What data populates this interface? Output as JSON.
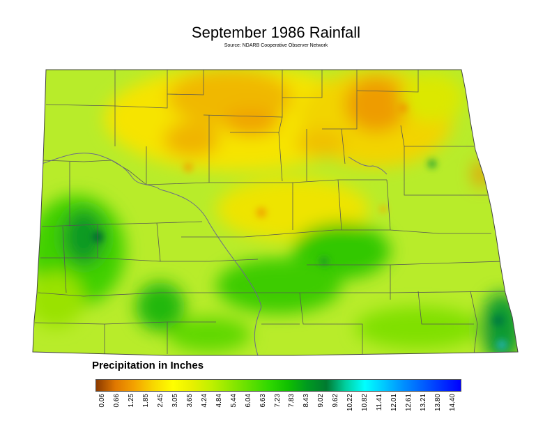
{
  "title": "September 1986 Rainfall",
  "source": "Source: NDARB Cooperative Observer Network",
  "legend": {
    "title": "Precipitation in Inches",
    "ticks": [
      "0.06",
      "0.66",
      "1.25",
      "1.85",
      "2.45",
      "3.05",
      "3.65",
      "4.24",
      "4.84",
      "5.44",
      "6.04",
      "6.63",
      "7.23",
      "7.83",
      "8.43",
      "9.02",
      "9.62",
      "10.22",
      "10.82",
      "11.41",
      "12.01",
      "12.61",
      "13.21",
      "13.80",
      "14.40"
    ],
    "colors": [
      "#8b3a00",
      "#e07800",
      "#f4a300",
      "#f8d800",
      "#ffff00",
      "#e8f000",
      "#c0f000",
      "#90e800",
      "#60e000",
      "#30d800",
      "#10c000",
      "#009a20",
      "#007a30",
      "#00d0a0",
      "#00ffff",
      "#00c8ff",
      "#0090ff",
      "#0060ff",
      "#0030ff",
      "#0000ff"
    ]
  }
}
